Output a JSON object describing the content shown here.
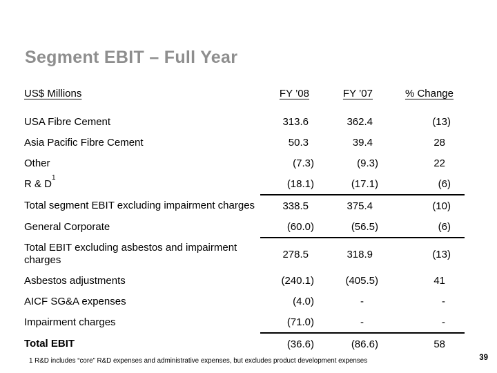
{
  "slide": {
    "title": "Segment EBIT – Full Year",
    "footnote": "1 R&D includes “core” R&D expenses and administrative expenses, but excludes product development expenses",
    "page_number": "39"
  },
  "table": {
    "columns": {
      "label": "US$ Millions",
      "fy08": "FY ’08",
      "fy07": "FY ’07",
      "change": "% Change"
    },
    "rows": [
      {
        "label": "USA Fibre Cement",
        "fy08": "313.6",
        "fy07": "362.4",
        "change": "(13)"
      },
      {
        "label": "Asia Pacific Fibre Cement",
        "fy08": "50.3",
        "fy07": "39.4",
        "change": "28"
      },
      {
        "label": "Other",
        "fy08": "(7.3)",
        "fy07": "(9.3)",
        "change": "22"
      },
      {
        "label": "R & D",
        "superscript": "1",
        "fy08": "(18.1)",
        "fy07": "(17.1)",
        "change": "(6)"
      },
      {
        "label": "Total segment EBIT excluding impairment charges",
        "fy08": "338.5",
        "fy07": "375.4",
        "change": "(10)"
      },
      {
        "label": "General Corporate",
        "fy08": "(60.0)",
        "fy07": "(56.5)",
        "change": "(6)"
      },
      {
        "label": "Total EBIT excluding asbestos and impairment charges",
        "fy08": "278.5",
        "fy07": "318.9",
        "change": "(13)"
      },
      {
        "label": "Asbestos adjustments",
        "fy08": "(240.1)",
        "fy07": "(405.5)",
        "change": "41"
      },
      {
        "label": "AICF SG&A expenses",
        "fy08": "(4.0)",
        "fy07": "-",
        "change": "-"
      },
      {
        "label": "Impairment charges",
        "fy08": "(71.0)",
        "fy07": "-",
        "change": "-"
      },
      {
        "label": "Total EBIT",
        "fy08": "(36.6)",
        "fy07": "(86.6)",
        "change": "58"
      }
    ]
  }
}
